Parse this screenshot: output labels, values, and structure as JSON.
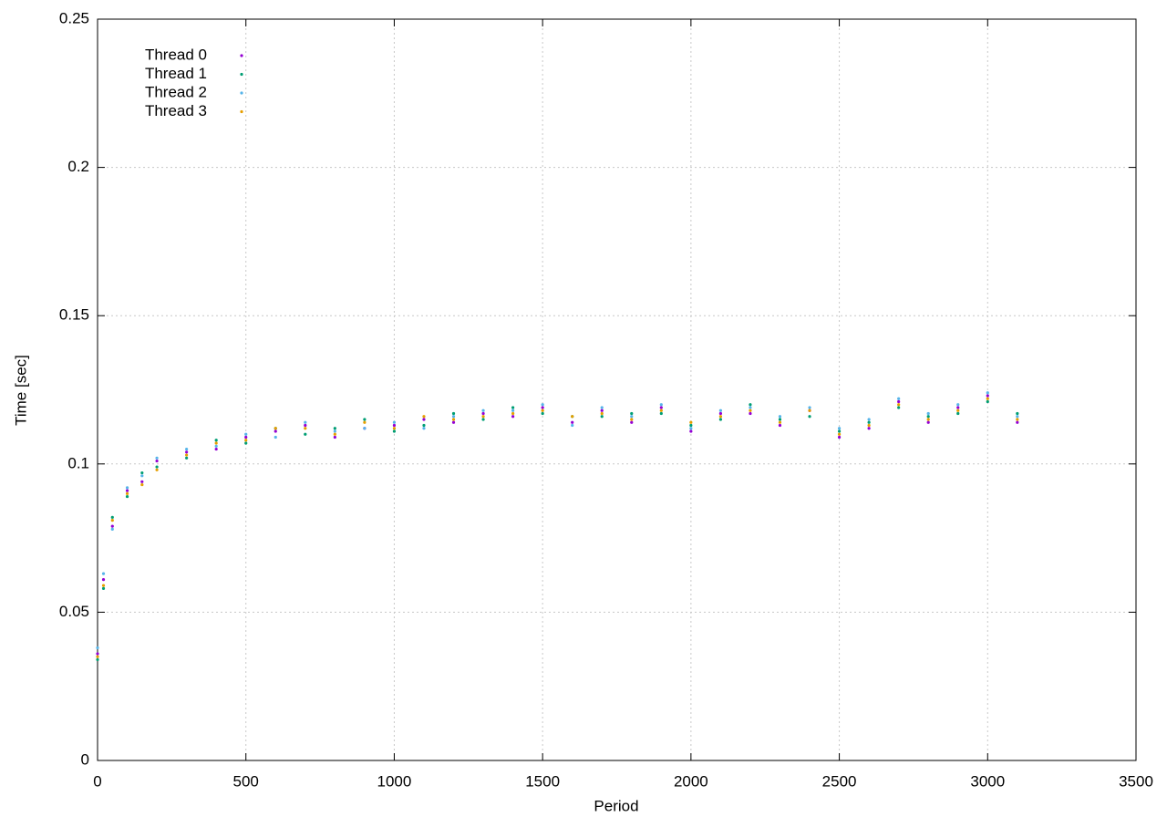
{
  "chart_data": {
    "type": "scatter",
    "x_label": "Period",
    "y_label": "Time [sec]",
    "xlim": [
      0,
      3500
    ],
    "ylim": [
      0,
      0.25
    ],
    "xticks": [
      0,
      500,
      1000,
      1500,
      2000,
      2500,
      3000,
      3500
    ],
    "yticks": [
      0,
      0.05,
      0.1,
      0.15,
      0.2,
      0.25
    ],
    "grid": true,
    "legend": "top-left",
    "x": [
      0,
      20,
      50,
      100,
      150,
      200,
      300,
      400,
      500,
      600,
      700,
      800,
      900,
      1000,
      1100,
      1200,
      1300,
      1400,
      1500,
      1600,
      1700,
      1800,
      1900,
      2000,
      2100,
      2200,
      2300,
      2400,
      2500,
      2600,
      2700,
      2800,
      2900,
      3000,
      3100
    ],
    "series": [
      {
        "name": "Thread 0",
        "color": "#9400d3",
        "values": [
          0.036,
          0.061,
          0.079,
          0.091,
          0.094,
          0.101,
          0.104,
          0.105,
          0.109,
          0.111,
          0.113,
          0.109,
          0.112,
          0.113,
          0.115,
          0.114,
          0.117,
          0.116,
          0.119,
          0.114,
          0.118,
          0.114,
          0.119,
          0.111,
          0.117,
          0.117,
          0.113,
          0.118,
          0.109,
          0.112,
          0.121,
          0.114,
          0.119,
          0.123,
          0.114
        ]
      },
      {
        "name": "Thread 1",
        "color": "#009e73",
        "values": [
          0.034,
          0.058,
          0.082,
          0.089,
          0.097,
          0.099,
          0.102,
          0.108,
          0.107,
          0.112,
          0.11,
          0.112,
          0.115,
          0.111,
          0.113,
          0.117,
          0.115,
          0.119,
          0.117,
          0.116,
          0.116,
          0.117,
          0.117,
          0.113,
          0.115,
          0.12,
          0.115,
          0.116,
          0.111,
          0.114,
          0.119,
          0.116,
          0.117,
          0.121,
          0.117
        ]
      },
      {
        "name": "Thread 2",
        "color": "#56b4e9",
        "values": [
          0.038,
          0.063,
          0.078,
          0.092,
          0.096,
          0.102,
          0.105,
          0.106,
          0.11,
          0.109,
          0.114,
          0.111,
          0.112,
          0.114,
          0.112,
          0.116,
          0.118,
          0.118,
          0.12,
          0.113,
          0.119,
          0.116,
          0.12,
          0.112,
          0.118,
          0.119,
          0.116,
          0.119,
          0.112,
          0.115,
          0.122,
          0.117,
          0.12,
          0.124,
          0.116
        ]
      },
      {
        "name": "Thread 3",
        "color": "#e69f00",
        "values": [
          0.035,
          0.059,
          0.081,
          0.09,
          0.093,
          0.098,
          0.103,
          0.107,
          0.108,
          0.112,
          0.112,
          0.11,
          0.114,
          0.112,
          0.116,
          0.115,
          0.116,
          0.117,
          0.118,
          0.116,
          0.117,
          0.115,
          0.118,
          0.114,
          0.116,
          0.118,
          0.114,
          0.118,
          0.11,
          0.113,
          0.12,
          0.115,
          0.118,
          0.122,
          0.115
        ]
      }
    ]
  }
}
